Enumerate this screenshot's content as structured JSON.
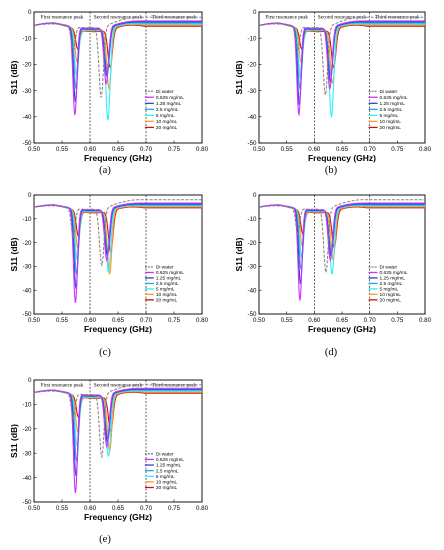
{
  "chart_data": [
    {
      "type": "line",
      "panel_label": "(a)",
      "xlabel": "Frequency (GHz)",
      "ylabel": "S11 (dB)",
      "xlim": [
        0.5,
        0.8
      ],
      "ylim": [
        -50,
        0
      ],
      "xticks": [
        "0.50",
        "0.55",
        "0.60",
        "0.65",
        "0.70",
        "0.75",
        "0.80"
      ],
      "yticks": [
        "0",
        "-10",
        "-20",
        "-30",
        "-40",
        "-50"
      ],
      "regions": [
        "First resonance peak",
        "Second resonance peak",
        "Third resonance peak"
      ],
      "series": [
        {
          "name": "Di water",
          "dips": [
            [
              0.57,
              -15
            ],
            [
              0.62,
              -33
            ]
          ]
        },
        {
          "name": "0.625 mg/mL",
          "dips": [
            [
              0.573,
              -40
            ],
            [
              0.629,
              -28
            ]
          ]
        },
        {
          "name": "1.25 mg/mL",
          "dips": [
            [
              0.574,
              -35
            ],
            [
              0.63,
              -25
            ]
          ]
        },
        {
          "name": "2.5 mg/mL",
          "dips": [
            [
              0.575,
              -30
            ],
            [
              0.631,
              -24
            ]
          ]
        },
        {
          "name": "5 mg/mL",
          "dips": [
            [
              0.576,
              -25
            ],
            [
              0.632,
              -42
            ]
          ]
        },
        {
          "name": "10 mg/mL",
          "dips": [
            [
              0.577,
              -20
            ],
            [
              0.634,
              -30
            ]
          ]
        },
        {
          "name": "20 mg/mL",
          "dips": [
            [
              0.578,
              -15
            ],
            [
              0.636,
              -22
            ]
          ]
        }
      ]
    },
    {
      "type": "line",
      "panel_label": "(b)",
      "xlabel": "Frequency (GHz)",
      "ylabel": "S11 (dB)",
      "xlim": [
        0.5,
        0.8
      ],
      "ylim": [
        -50,
        0
      ],
      "xticks": [
        "0.50",
        "0.55",
        "0.60",
        "0.65",
        "0.70",
        "0.75",
        "0.80"
      ],
      "yticks": [
        "0",
        "-10",
        "-20",
        "-30",
        "-40",
        "-50"
      ],
      "regions": [
        "First resonance peak",
        "Second resonance peak",
        "Third resonance peak"
      ],
      "series": [
        {
          "name": "Di water",
          "dips": [
            [
              0.57,
              -15
            ],
            [
              0.62,
              -32
            ]
          ]
        },
        {
          "name": "0.625 mg/mL",
          "dips": [
            [
              0.572,
              -40
            ],
            [
              0.628,
              -30
            ]
          ]
        },
        {
          "name": "1.25 mg/mL",
          "dips": [
            [
              0.573,
              -36
            ],
            [
              0.629,
              -27
            ]
          ]
        },
        {
          "name": "2.5 mg/mL",
          "dips": [
            [
              0.574,
              -30
            ],
            [
              0.63,
              -25
            ]
          ]
        },
        {
          "name": "5 mg/mL",
          "dips": [
            [
              0.575,
              -26
            ],
            [
              0.631,
              -41
            ]
          ]
        },
        {
          "name": "10 mg/mL",
          "dips": [
            [
              0.576,
              -20
            ],
            [
              0.633,
              -28
            ]
          ]
        },
        {
          "name": "20 mg/mL",
          "dips": [
            [
              0.577,
              -15
            ],
            [
              0.635,
              -22
            ]
          ]
        }
      ]
    },
    {
      "type": "line",
      "panel_label": "(c)",
      "xlabel": "Frequency (GHz)",
      "ylabel": "S11 (dB)",
      "xlim": [
        0.5,
        0.8
      ],
      "ylim": [
        -50,
        0
      ],
      "xticks": [
        "0.50",
        "0.55",
        "0.60",
        "0.65",
        "0.70",
        "0.75",
        "0.80"
      ],
      "yticks": [
        "0",
        "-10",
        "-20",
        "-30",
        "-40",
        "-50"
      ],
      "regions": [],
      "series": [
        {
          "name": "Di water",
          "dips": [
            [
              0.57,
              -18
            ],
            [
              0.621,
              -30
            ]
          ]
        },
        {
          "name": "0.625 mg/mL",
          "dips": [
            [
              0.574,
              -46
            ],
            [
              0.63,
              -28
            ]
          ]
        },
        {
          "name": "1.25 mg/mL",
          "dips": [
            [
              0.575,
              -40
            ],
            [
              0.631,
              -26
            ]
          ]
        },
        {
          "name": "2.5 mg/mL",
          "dips": [
            [
              0.576,
              -34
            ],
            [
              0.632,
              -25
            ]
          ]
        },
        {
          "name": "5 mg/mL",
          "dips": [
            [
              0.577,
              -28
            ],
            [
              0.633,
              -33
            ]
          ]
        },
        {
          "name": "10 mg/mL",
          "dips": [
            [
              0.578,
              -23
            ],
            [
              0.635,
              -34
            ]
          ]
        },
        {
          "name": "20 mg/mL",
          "dips": [
            [
              0.579,
              -18
            ],
            [
              0.637,
              -25
            ]
          ]
        }
      ]
    },
    {
      "type": "line",
      "panel_label": "(d)",
      "xlabel": "Frequency (GHz)",
      "ylabel": "S11 (dB)",
      "xlim": [
        0.5,
        0.8
      ],
      "ylim": [
        -50,
        0
      ],
      "xticks": [
        "0.50",
        "0.55",
        "0.60",
        "0.65",
        "0.70",
        "0.75",
        "0.80"
      ],
      "yticks": [
        "0",
        "-10",
        "-20",
        "-30",
        "-40",
        "-50"
      ],
      "regions": [],
      "series": [
        {
          "name": "Di water",
          "dips": [
            [
              0.57,
              -17
            ],
            [
              0.621,
              -33
            ]
          ]
        },
        {
          "name": "0.625 mg/mL",
          "dips": [
            [
              0.574,
              -45
            ],
            [
              0.629,
              -28
            ]
          ]
        },
        {
          "name": "1.25 mg/mL",
          "dips": [
            [
              0.575,
              -38
            ],
            [
              0.63,
              -26
            ]
          ]
        },
        {
          "name": "2.5 mg/mL",
          "dips": [
            [
              0.576,
              -32
            ],
            [
              0.631,
              -25
            ]
          ]
        },
        {
          "name": "5 mg/mL",
          "dips": [
            [
              0.577,
              -27
            ],
            [
              0.632,
              -34
            ]
          ]
        },
        {
          "name": "10 mg/mL",
          "dips": [
            [
              0.578,
              -22
            ],
            [
              0.634,
              -28
            ]
          ]
        },
        {
          "name": "20 mg/mL",
          "dips": [
            [
              0.579,
              -17
            ],
            [
              0.636,
              -23
            ]
          ]
        }
      ]
    },
    {
      "type": "line",
      "panel_label": "(e)",
      "xlabel": "Frequency (GHz)",
      "ylabel": "S11 (dB)",
      "xlim": [
        0.5,
        0.8
      ],
      "ylim": [
        -50,
        0
      ],
      "xticks": [
        "0.50",
        "0.55",
        "0.60",
        "0.65",
        "0.70",
        "0.75",
        "0.80"
      ],
      "yticks": [
        "0",
        "-10",
        "-20",
        "-30",
        "-40",
        "-50"
      ],
      "regions": [
        "First resonance peak",
        "Second resonance peak",
        "Third resonance peak"
      ],
      "series": [
        {
          "name": "Di water",
          "dips": [
            [
              0.57,
              -16
            ],
            [
              0.621,
              -32
            ]
          ]
        },
        {
          "name": "0.625 mg/mL",
          "dips": [
            [
              0.574,
              -47
            ],
            [
              0.63,
              -28
            ]
          ]
        },
        {
          "name": "1.25 mg/mL",
          "dips": [
            [
              0.575,
              -40
            ],
            [
              0.631,
              -26
            ]
          ]
        },
        {
          "name": "2.5 mg/mL",
          "dips": [
            [
              0.576,
              -34
            ],
            [
              0.632,
              -25
            ]
          ]
        },
        {
          "name": "5 mg/mL",
          "dips": [
            [
              0.577,
              -28
            ],
            [
              0.633,
              -32
            ]
          ]
        },
        {
          "name": "10 mg/mL",
          "dips": [
            [
              0.578,
              -22
            ],
            [
              0.635,
              -30
            ]
          ]
        },
        {
          "name": "20 mg/mL",
          "dips": [
            [
              0.579,
              -16
            ],
            [
              0.637,
              -22
            ]
          ]
        }
      ]
    }
  ],
  "series_colors": [
    "#808080",
    "#cc33ff",
    "#3344cc",
    "#22aadd",
    "#33eeff",
    "#ff9922",
    "#cc1111"
  ],
  "series_dashed": [
    true,
    false,
    false,
    false,
    false,
    false,
    false
  ],
  "divider_lines_ghz": [
    0.6,
    0.7
  ]
}
